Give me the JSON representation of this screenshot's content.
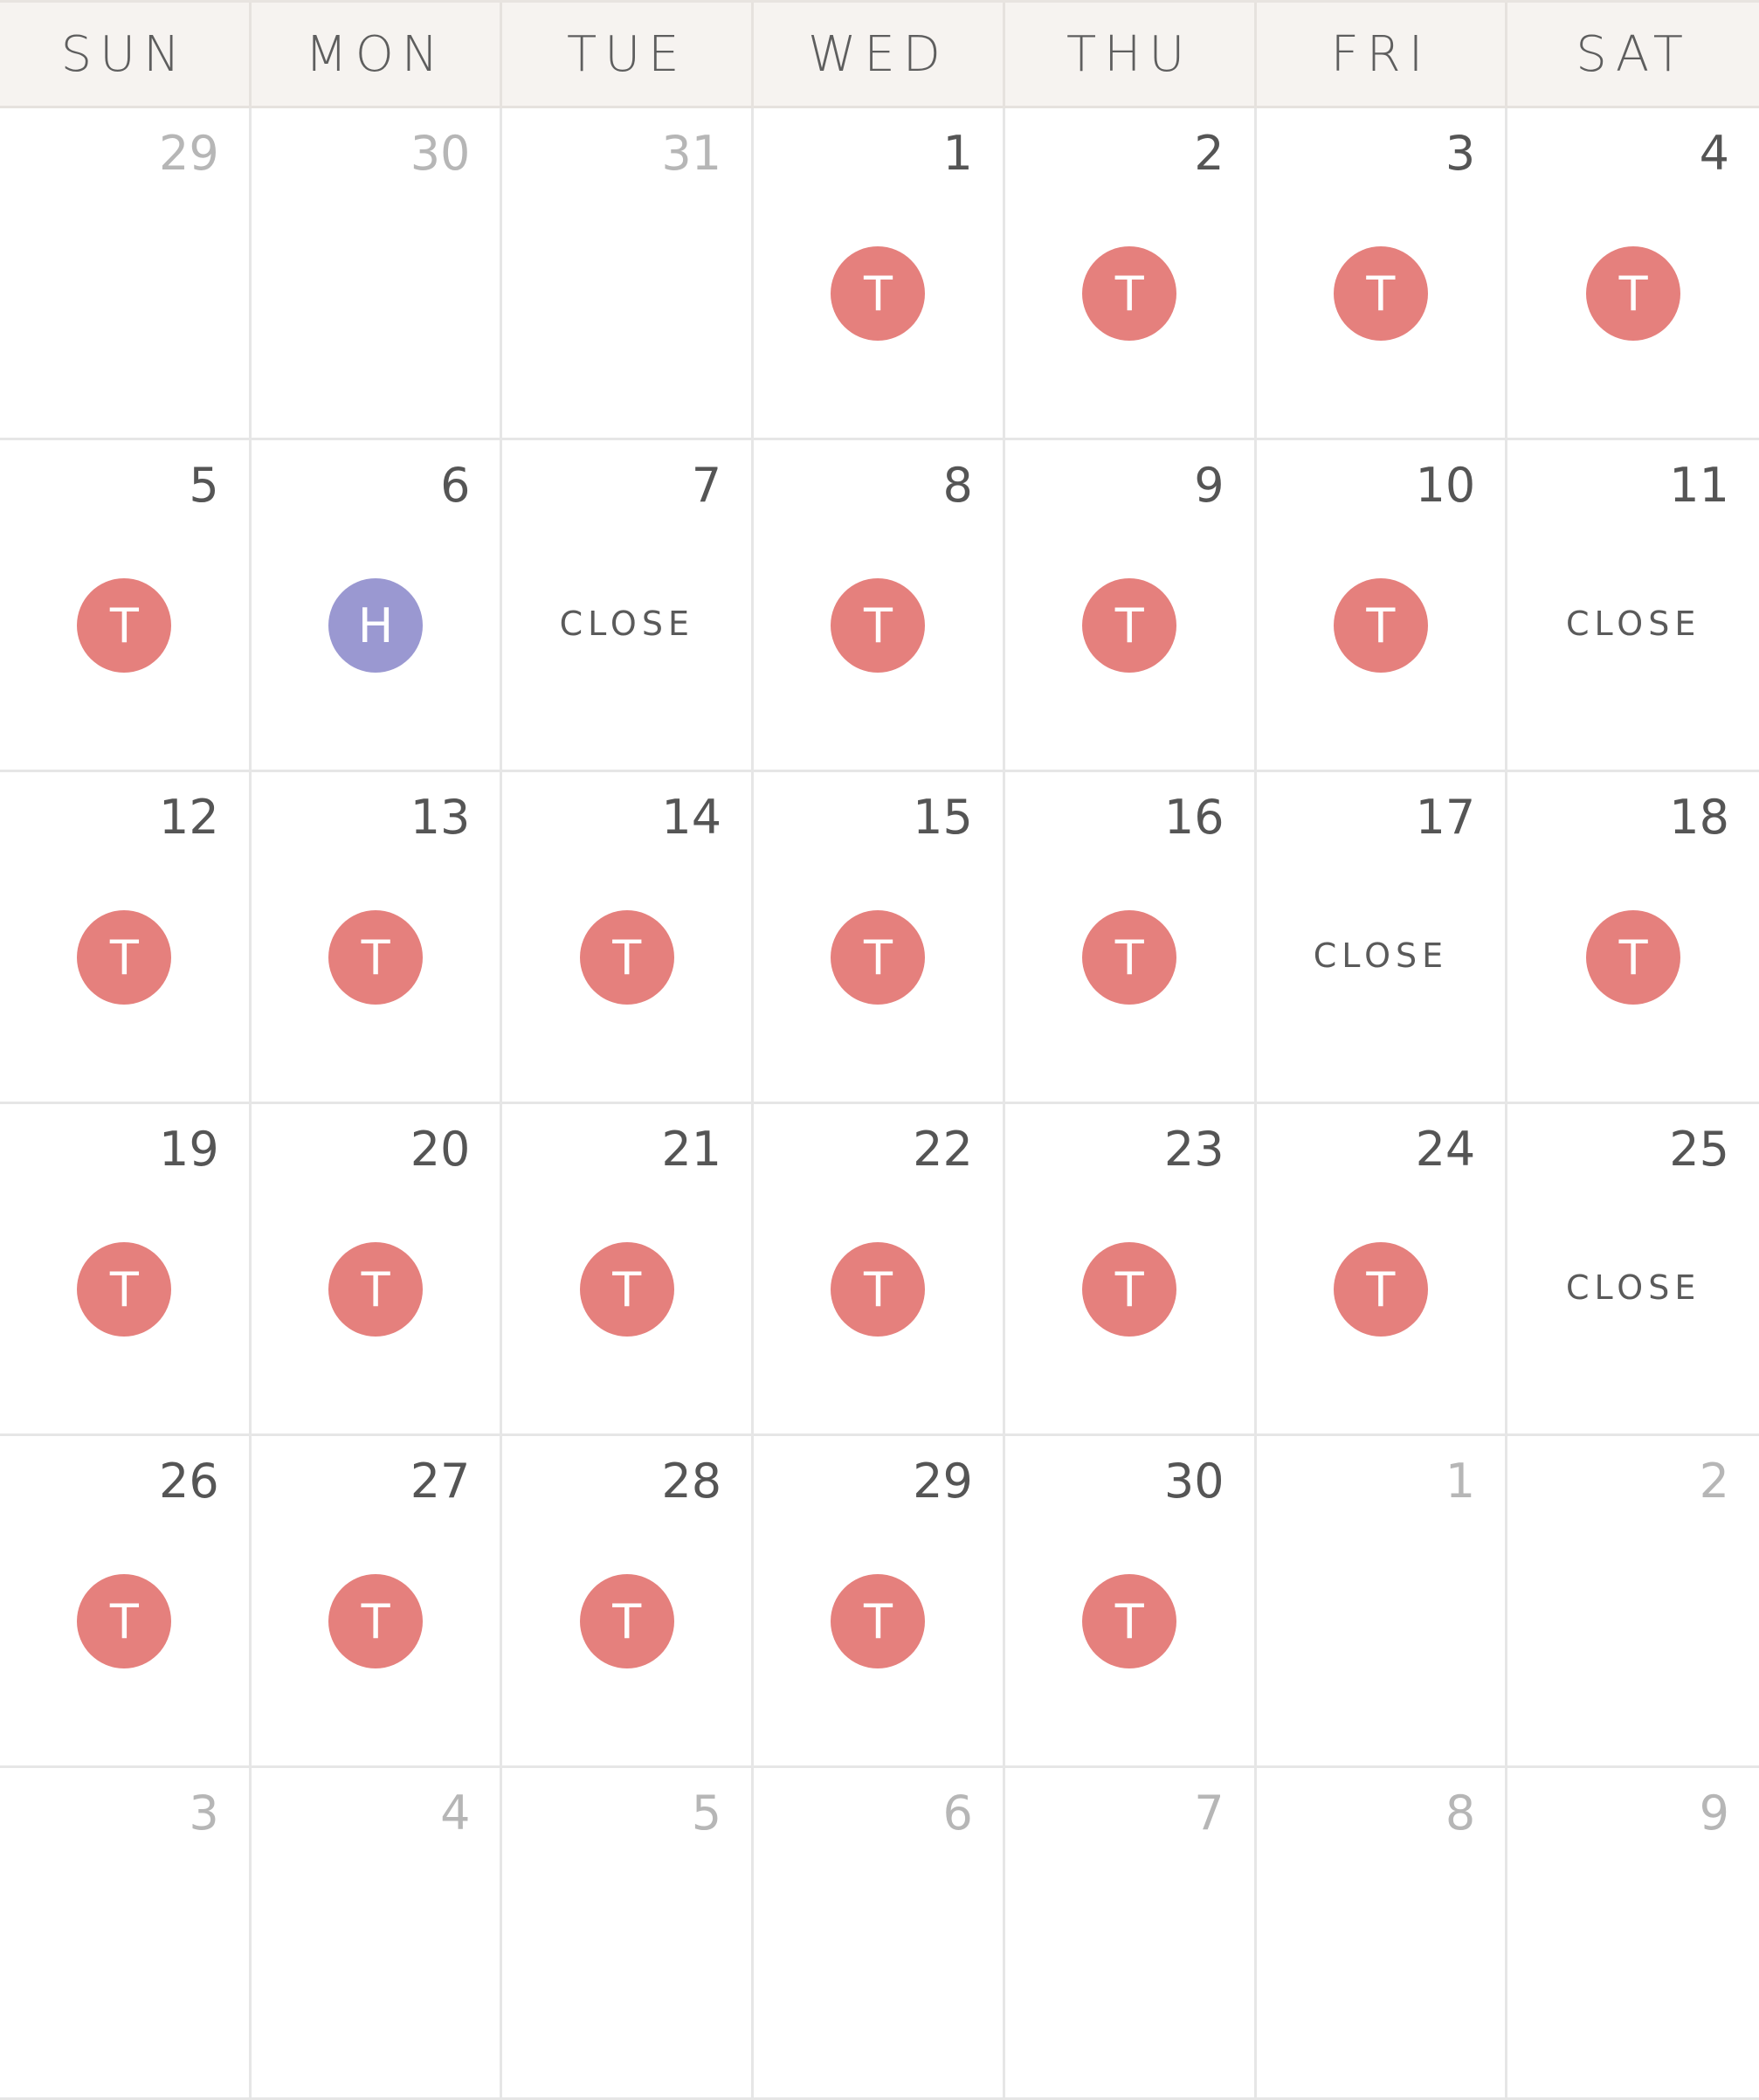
{
  "colors": {
    "type_t": "#e5807d",
    "type_h": "#9a98d1"
  },
  "weekdays": [
    "SUN",
    "MON",
    "TUE",
    "WED",
    "THU",
    "FRI",
    "SAT"
  ],
  "days": [
    {
      "num": "29",
      "muted": true
    },
    {
      "num": "30",
      "muted": true
    },
    {
      "num": "31",
      "muted": true
    },
    {
      "num": "1",
      "marker": "T"
    },
    {
      "num": "2",
      "marker": "T"
    },
    {
      "num": "3",
      "marker": "T"
    },
    {
      "num": "4",
      "marker": "T"
    },
    {
      "num": "5",
      "marker": "T"
    },
    {
      "num": "6",
      "marker": "H"
    },
    {
      "num": "7",
      "close": "CLOSE"
    },
    {
      "num": "8",
      "marker": "T"
    },
    {
      "num": "9",
      "marker": "T"
    },
    {
      "num": "10",
      "marker": "T"
    },
    {
      "num": "11",
      "close": "CLOSE"
    },
    {
      "num": "12",
      "marker": "T"
    },
    {
      "num": "13",
      "marker": "T"
    },
    {
      "num": "14",
      "marker": "T"
    },
    {
      "num": "15",
      "marker": "T"
    },
    {
      "num": "16",
      "marker": "T"
    },
    {
      "num": "17",
      "close": "CLOSE"
    },
    {
      "num": "18",
      "marker": "T"
    },
    {
      "num": "19",
      "marker": "T"
    },
    {
      "num": "20",
      "marker": "T"
    },
    {
      "num": "21",
      "marker": "T"
    },
    {
      "num": "22",
      "marker": "T"
    },
    {
      "num": "23",
      "marker": "T"
    },
    {
      "num": "24",
      "marker": "T"
    },
    {
      "num": "25",
      "close": "CLOSE"
    },
    {
      "num": "26",
      "marker": "T"
    },
    {
      "num": "27",
      "marker": "T"
    },
    {
      "num": "28",
      "marker": "T"
    },
    {
      "num": "29",
      "marker": "T"
    },
    {
      "num": "30",
      "marker": "T"
    },
    {
      "num": "1",
      "muted": true
    },
    {
      "num": "2",
      "muted": true
    },
    {
      "num": "3",
      "muted": true
    },
    {
      "num": "4",
      "muted": true
    },
    {
      "num": "5",
      "muted": true
    },
    {
      "num": "6",
      "muted": true
    },
    {
      "num": "7",
      "muted": true
    },
    {
      "num": "8",
      "muted": true
    },
    {
      "num": "9",
      "muted": true
    }
  ]
}
